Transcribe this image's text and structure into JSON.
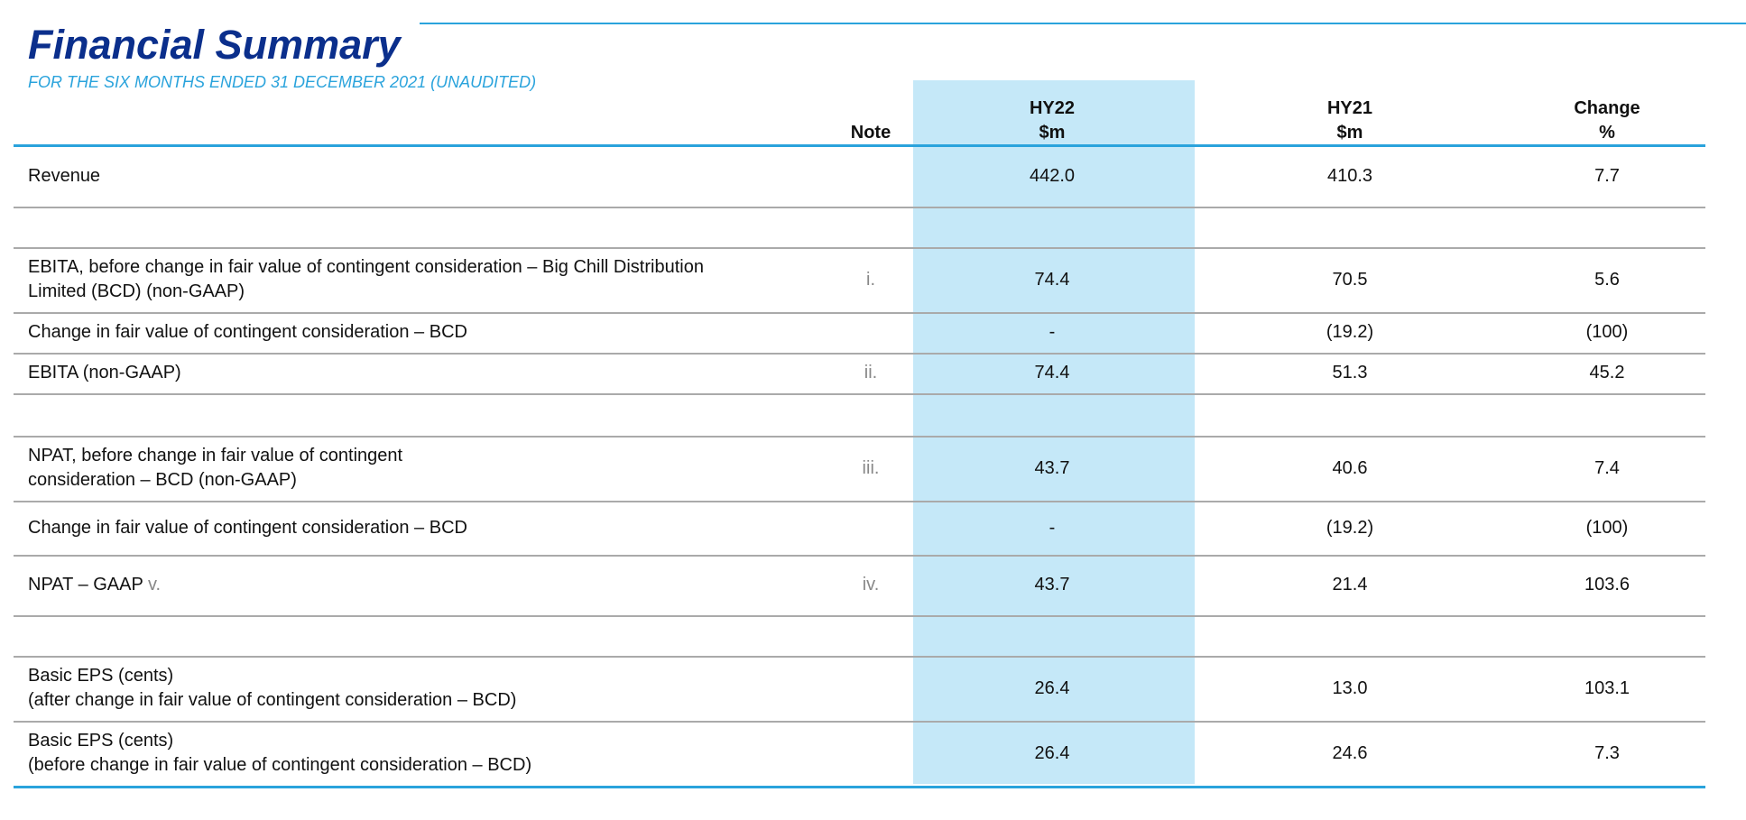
{
  "header": {
    "title": "Financial Summary",
    "subtitle": "FOR THE SIX MONTHS ENDED 31 DECEMBER 2021 (UNAUDITED)"
  },
  "table": {
    "columns": [
      [
        "Note"
      ],
      [
        "HY22",
        "$m"
      ],
      [
        "HY21",
        "$m"
      ],
      [
        "Change",
        "%"
      ]
    ],
    "rows": [
      {
        "label": [
          "Revenue"
        ],
        "hy22": "442.0",
        "hy21": "410.3",
        "change": "7.7"
      },
      {
        "label": [
          "EBITA, before change in fair value of contingent consideration – Big Chill Distribution",
          "Limited (BCD) (non-GAAP)"
        ],
        "note": "i.",
        "hy22": "74.4",
        "hy21": "70.5",
        "change": "5.6"
      },
      {
        "label": [
          "Change in fair value of contingent consideration – BCD"
        ],
        "hy22": "-",
        "hy21": "(19.2)",
        "change": "(100)"
      },
      {
        "label": [
          "EBITA (non-GAAP)"
        ],
        "note": "ii.",
        "hy22": "74.4",
        "hy21": "51.3",
        "change": "45.2"
      },
      {
        "label": [
          "NPAT, before change in fair value of contingent",
          "consideration – BCD (non-GAAP)"
        ],
        "note": "iii.",
        "hy22": "43.7",
        "hy21": "40.6",
        "change": "7.4"
      },
      {
        "label": [
          "Change in fair value of contingent consideration – BCD"
        ],
        "hy22": "-",
        "hy21": "(19.2)",
        "change": "(100)"
      },
      {
        "label": [
          "NPAT – GAAP"
        ],
        "label_suffix": "v.",
        "note": "iv.",
        "hy22": "43.7",
        "hy21": "21.4",
        "change": "103.6"
      },
      {
        "label": [
          "Basic EPS (cents)",
          "(after change in fair value of contingent consideration – BCD)"
        ],
        "hy22": "26.4",
        "hy21": "13.0",
        "change": "103.1"
      },
      {
        "label": [
          "Basic EPS (cents)",
          "(before change in fair value of contingent consideration – BCD)"
        ],
        "hy22": "26.4",
        "hy21": "24.6",
        "change": "7.3"
      }
    ]
  }
}
